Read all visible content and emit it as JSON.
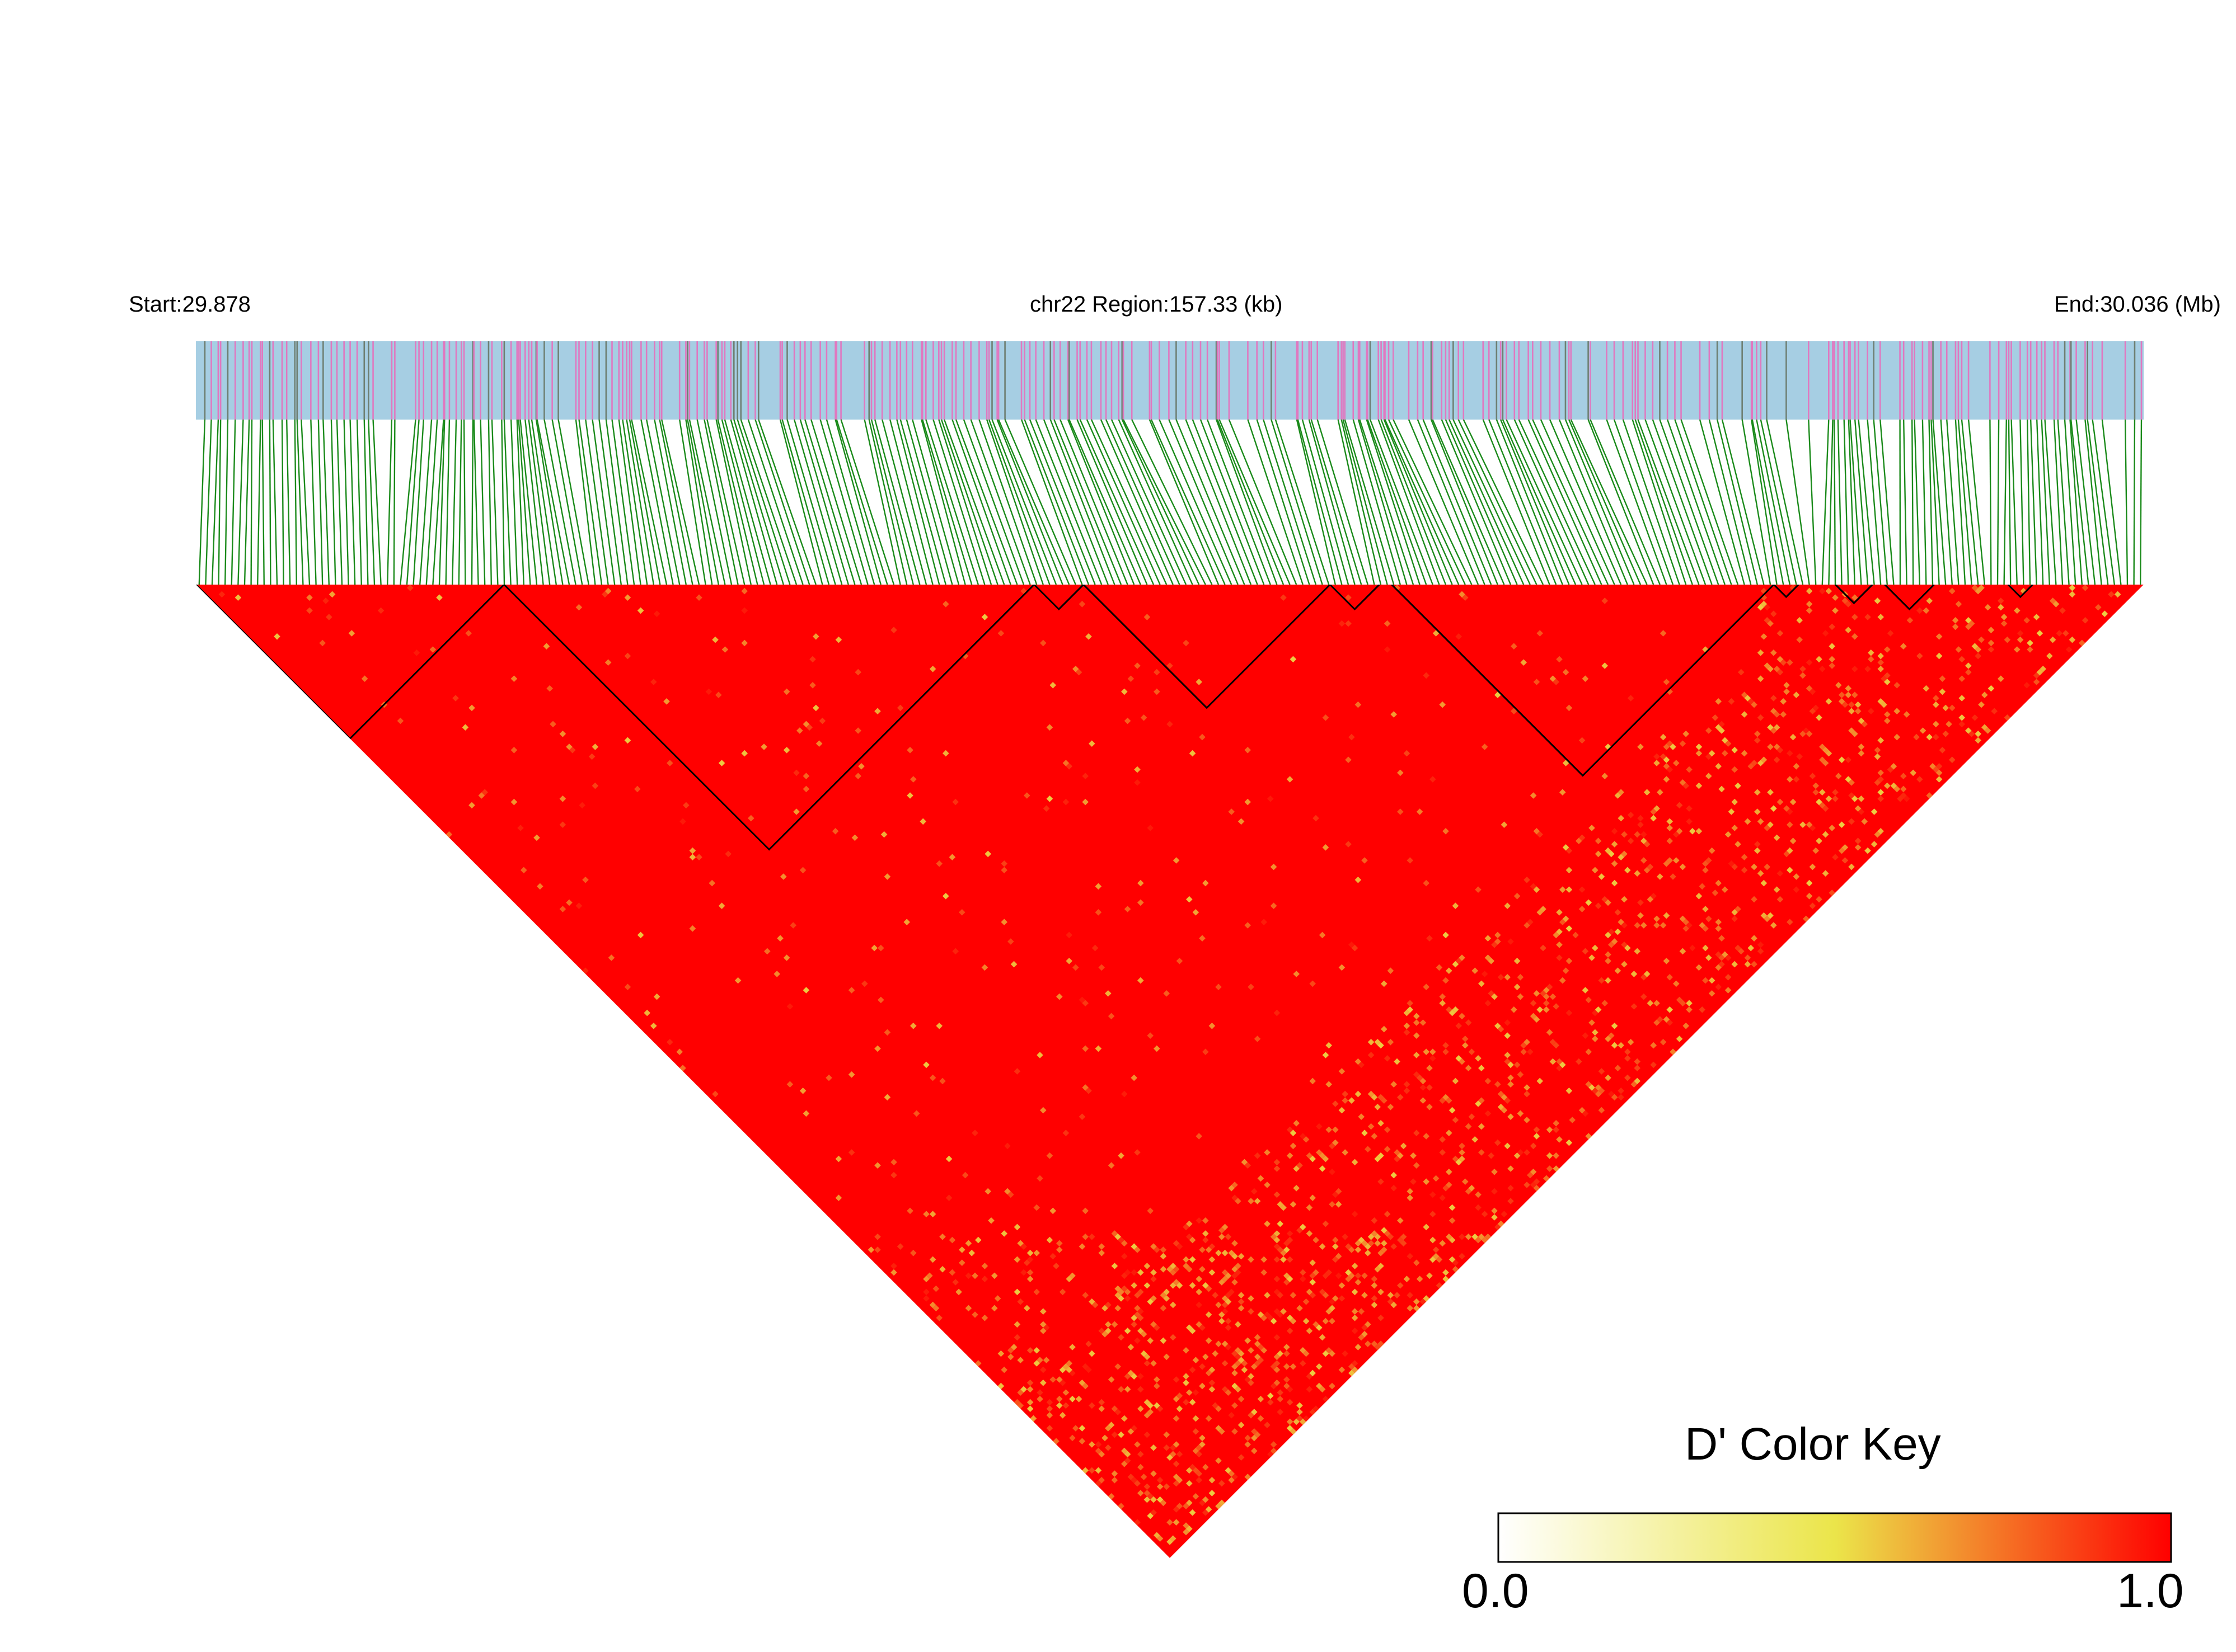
{
  "header": {
    "start": "Start:29.878",
    "region": "chr22 Region:157.33 (kb)",
    "end": "End:30.036 (Mb)"
  },
  "legend": {
    "title": "D' Color Key",
    "min_label": "0.0",
    "max_label": "1.0"
  },
  "colors": {
    "track_background": "#a6cee3",
    "snp_tick_primary": "#e078c0",
    "snp_tick_secondary": "#6e7f72",
    "connector": "#1a8a1a",
    "high_ld": "#ff0000",
    "low_ld": "#ffffff",
    "mid_ld": "#ebe54a"
  },
  "chart_data": {
    "type": "heatmap",
    "description_of_values": "pairwise D' linkage disequilibrium between SNPs",
    "chromosome": "chr22",
    "region_start_mb": 29.878,
    "region_end_mb": 30.036,
    "region_length_kb": 157.33,
    "value_range": [
      0.0,
      1.0
    ],
    "colorscale": [
      "#ffffff",
      "#ebe54a",
      "#ff0000"
    ],
    "haplotype_blocks_approx_mb": [
      [
        29.878,
        29.903
      ],
      [
        29.903,
        29.946
      ],
      [
        29.946,
        29.95
      ],
      [
        29.95,
        29.97
      ],
      [
        29.97,
        29.974
      ],
      [
        29.975,
        30.006
      ],
      [
        30.006,
        30.008
      ],
      [
        30.011,
        30.014
      ],
      [
        30.015,
        30.019
      ],
      [
        30.025,
        30.027
      ]
    ]
  }
}
